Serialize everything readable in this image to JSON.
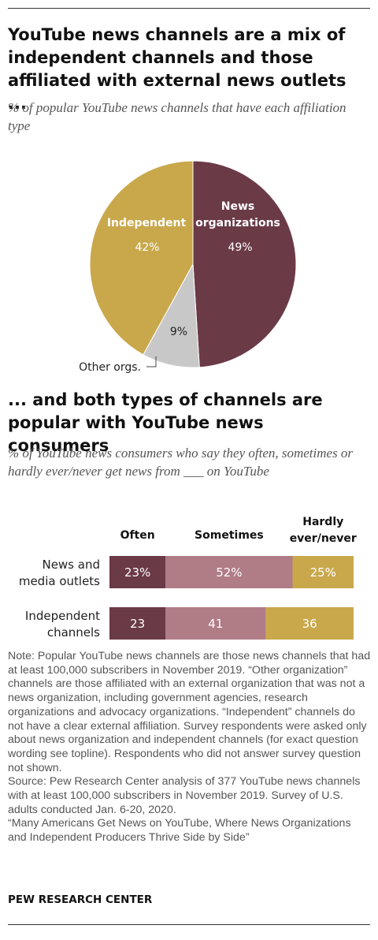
{
  "top_title": "YouTube news channels are a mix of independent channels and those affiliated with external news outlets ...",
  "top_subtitle": "% of popular YouTube news channels that have each affiliation type",
  "bottom_title": "... and both types of channels are popular with YouTube news consumers",
  "bottom_subtitle": "% of YouTube news consumers who say they often, sometimes or hardly ever/never get news from ___ on YouTube",
  "note_lines": [
    "Note: Popular YouTube news channels are those news channels that had at least 100,000 subscribers in November 2019. “Other organization” channels are those affiliated with an external organization that was not a news organization, including government agencies, research organizations and advocacy organizations. “Independent” channels do not have a clear external affiliation. Survey respondents were asked only about news organization and independent channels (for exact question wording see topline). Respondents who did not answer survey question not shown.",
    "Source: Pew Research Center analysis of 377 YouTube news channels with at least 100,000 subscribers in November 2019. Survey of U.S. adults conducted Jan. 6-20, 2020.",
    "“Many Americans Get News on YouTube, Where News Organizations and Independent Producers Thrive Side by Side”"
  ],
  "source_label": "PEW RESEARCH CENTER",
  "chart_data": [
    {
      "type": "pie",
      "slices": [
        {
          "name": "News organizations",
          "value": 49,
          "label": "49%",
          "color": "#6b3a47"
        },
        {
          "name": "Other orgs.",
          "value": 9,
          "label": "9%",
          "color": "#c8c8c8"
        },
        {
          "name": "Independent",
          "value": 42,
          "label": "42%",
          "color": "#c9a84c"
        }
      ]
    },
    {
      "type": "bar",
      "orientation": "horizontal",
      "stacked": true,
      "xlim": [
        0,
        100
      ],
      "categories": [
        "News and media outlets",
        "Independent channels"
      ],
      "series": [
        {
          "name": "Often",
          "values": [
            23,
            23
          ],
          "labels": [
            "23%",
            "23"
          ],
          "color": "#6b3a47"
        },
        {
          "name": "Sometimes",
          "values": [
            52,
            41
          ],
          "labels": [
            "52%",
            "41"
          ],
          "color": "#b07c86"
        },
        {
          "name": "Hardly ever/never",
          "values": [
            25,
            36
          ],
          "labels": [
            "25%",
            "36"
          ],
          "color": "#c9a84c"
        }
      ]
    }
  ]
}
